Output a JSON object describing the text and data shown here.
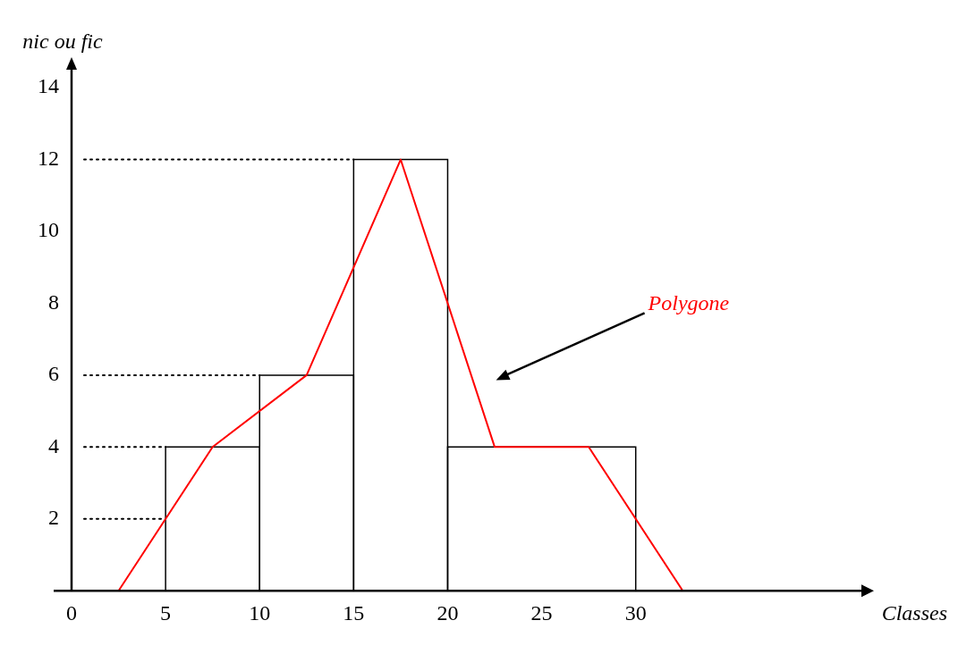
{
  "chart_data": {
    "type": "histogram",
    "xlabel": "Classes",
    "ylabel": "nic ou fic",
    "series": [
      {
        "bins": [
          5,
          10,
          15,
          20,
          30
        ],
        "values": [
          4,
          6,
          12,
          4
        ],
        "color": "#000000"
      },
      {
        "type": "line",
        "x": [
          2.5,
          7.5,
          12.5,
          17.5,
          22.5,
          27.5,
          32.5
        ],
        "values": [
          0,
          4,
          6,
          12,
          4,
          4,
          0
        ],
        "color": "#ff0000"
      }
    ],
    "xlim": [
      0,
      42
    ],
    "xticks": [
      0,
      5,
      10,
      15,
      20,
      25,
      30
    ],
    "ylim": [
      0,
      14.5
    ],
    "yticks": [
      2,
      4,
      6,
      8,
      10,
      12,
      14
    ],
    "ref_lines": [
      {
        "axis": "y",
        "value": 12,
        "line_style": "dotted",
        "color": "#000000"
      },
      {
        "axis": "y",
        "value": 6,
        "line_style": "dotted",
        "color": "#000000"
      },
      {
        "axis": "y",
        "value": 4,
        "line_style": "dotted",
        "color": "#000000"
      },
      {
        "axis": "y",
        "value": 2,
        "line_style": "dotted",
        "color": "#000000"
      }
    ],
    "annotations": [
      "Polygone"
    ],
    "grid": false,
    "legend": false,
    "marker": "none",
    "line_style": "solid"
  }
}
